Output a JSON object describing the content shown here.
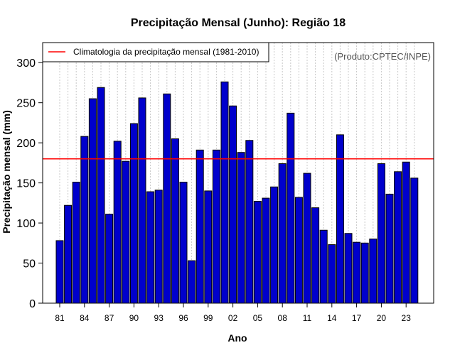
{
  "chart_data": {
    "type": "bar",
    "title": "Precipitação Mensal (Junho): Região 18",
    "xlabel": "Ano",
    "ylabel": "Precipitação mensal (mm)",
    "ylim": [
      0,
      325
    ],
    "yticks": [
      0,
      50,
      100,
      150,
      200,
      250,
      300
    ],
    "categories": [
      "1981",
      "1982",
      "1983",
      "1984",
      "1985",
      "1986",
      "1987",
      "1988",
      "1989",
      "1990",
      "1991",
      "1992",
      "1993",
      "1994",
      "1995",
      "1996",
      "1997",
      "1998",
      "1999",
      "2000",
      "2001",
      "2002",
      "2003",
      "2004",
      "2005",
      "2006",
      "2007",
      "2008",
      "2009",
      "2010",
      "2011",
      "2012",
      "2013",
      "2014",
      "2015",
      "2016",
      "2017",
      "2018",
      "2019",
      "2020",
      "2021",
      "2022",
      "2023",
      "2024"
    ],
    "values": [
      78,
      122,
      151,
      208,
      255,
      269,
      111,
      202,
      177,
      224,
      256,
      139,
      141,
      261,
      205,
      151,
      53,
      191,
      140,
      191,
      276,
      246,
      188,
      203,
      127,
      131,
      145,
      174,
      237,
      132,
      162,
      119,
      91,
      73,
      210,
      87,
      76,
      75,
      80,
      174,
      136,
      164,
      176,
      156
    ],
    "xtick_labels": [
      "81",
      "84",
      "87",
      "90",
      "93",
      "96",
      "99",
      "02",
      "05",
      "08",
      "11",
      "14",
      "17",
      "20",
      "23"
    ],
    "xtick_every": 3,
    "climatology": 180,
    "legend": {
      "position": "top-left",
      "entries": [
        {
          "label": "Climatologia da precipitação mensal (1981-2010)",
          "color": "#ff0000"
        }
      ]
    },
    "annotation": "(Produto:CPTEC/INPE)",
    "grid": true,
    "colors": {
      "bar_fill": "#0000cc",
      "bar_stroke": "#000000",
      "line": "#ff0000",
      "grid": "#c8c8c8"
    }
  }
}
